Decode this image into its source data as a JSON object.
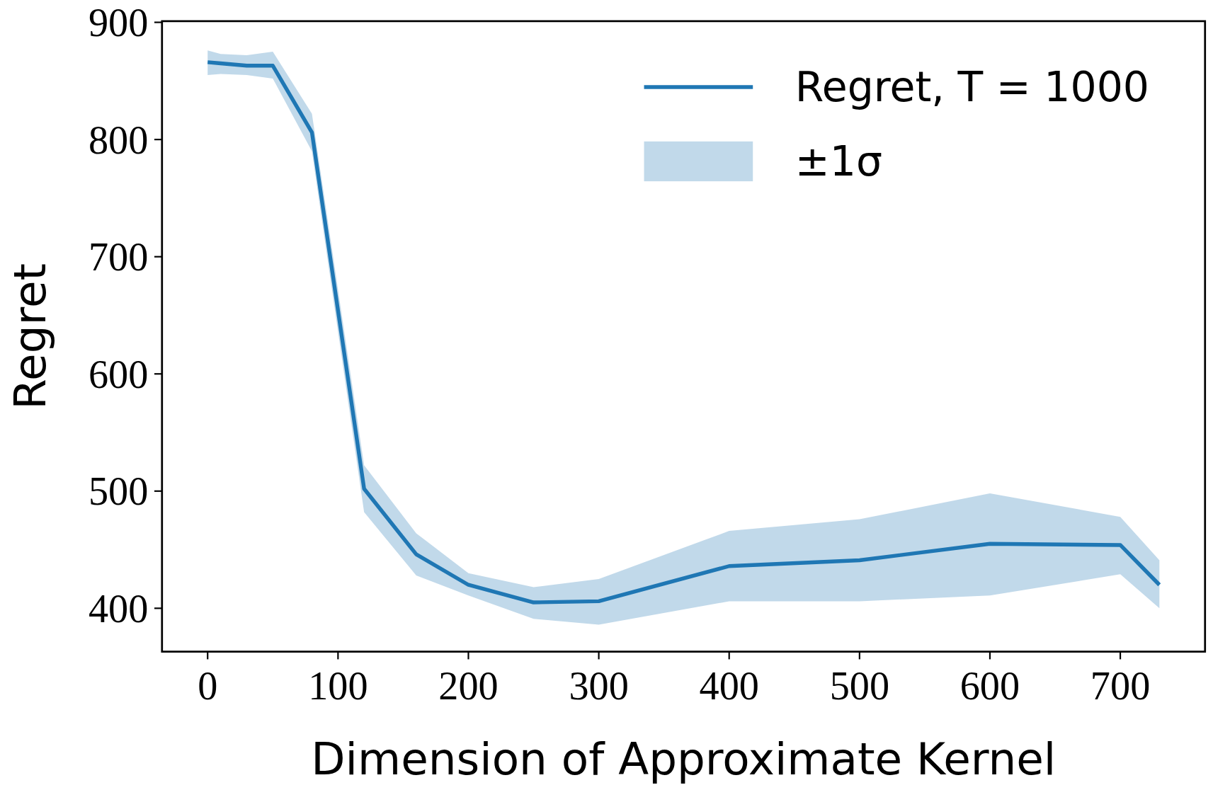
{
  "chart_data": {
    "type": "line",
    "xlabel": "Dimension of Approximate Kernel",
    "ylabel": "Regret",
    "x": [
      0,
      10,
      30,
      50,
      80,
      120,
      160,
      200,
      250,
      300,
      400,
      500,
      600,
      700,
      730
    ],
    "series": [
      {
        "name": "Regret, T = 1000",
        "color": "#1f77b4",
        "values": [
          866,
          865,
          863,
          863,
          806,
          502,
          446,
          420,
          405,
          406,
          436,
          441,
          455,
          454,
          420
        ],
        "upper": [
          876,
          873,
          872,
          875,
          822,
          522,
          464,
          430,
          418,
          425,
          466,
          476,
          498,
          478,
          441
        ],
        "lower": [
          855,
          856,
          855,
          852,
          790,
          482,
          428,
          411,
          391,
          386,
          406,
          406,
          411,
          429,
          400
        ]
      }
    ],
    "annotations": [
      "±1σ"
    ],
    "xlim": [
      -35,
      765
    ],
    "xticks": [
      0,
      100,
      200,
      300,
      400,
      500,
      600,
      700
    ],
    "ylim": [
      363,
      901
    ],
    "yticks": [
      400,
      500,
      600,
      700,
      800,
      900
    ],
    "grid": false,
    "legend": "top right",
    "marker": "none",
    "line_style": "solid"
  }
}
